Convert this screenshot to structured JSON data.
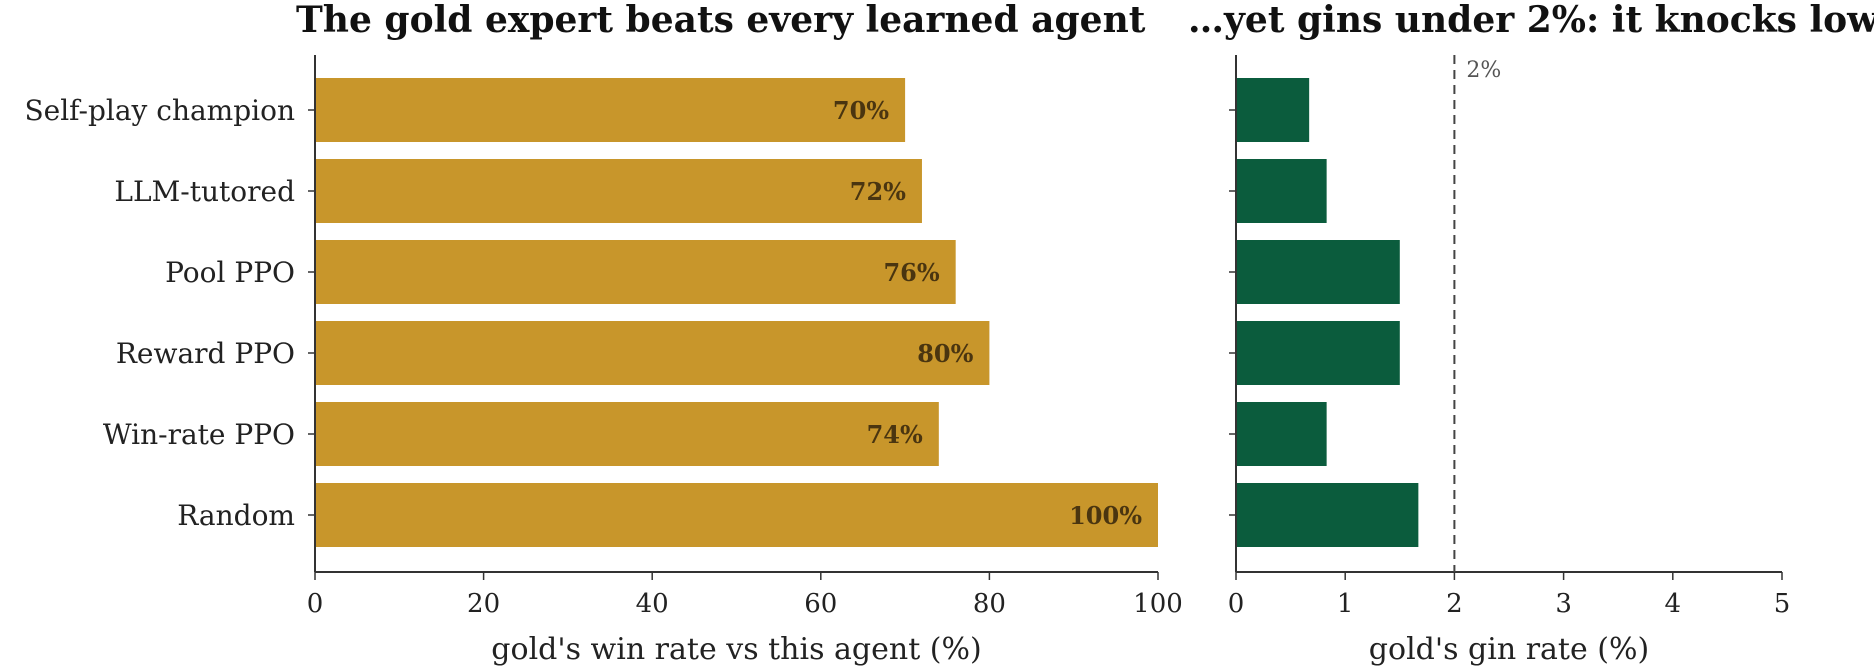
{
  "colors": {
    "win": "#C8962B",
    "gin": "#0B5C3D",
    "axis": "#333333",
    "ref_line": "#444444"
  },
  "chart_data": {
    "title_left": "The gold expert beats every learned agent",
    "title_right": "…yet gins under 2%: it knocks low",
    "panels": [
      {
        "type": "bar",
        "orientation": "horizontal",
        "categories": [
          "Self-play champion",
          "LLM-tutored",
          "Pool PPO",
          "Reward PPO",
          "Win-rate PPO",
          "Random"
        ],
        "values": [
          70,
          72,
          76,
          80,
          74,
          100
        ],
        "data_labels": [
          "70%",
          "72%",
          "76%",
          "80%",
          "74%",
          "100%"
        ],
        "xlabel": "gold's win rate vs this agent (%)",
        "xlim": [
          0,
          100
        ],
        "xticks": [
          0,
          20,
          40,
          60,
          80,
          100
        ],
        "color": "#C8962B"
      },
      {
        "type": "bar",
        "orientation": "horizontal",
        "categories": [
          "Self-play champion",
          "LLM-tutored",
          "Pool PPO",
          "Reward PPO",
          "Win-rate PPO",
          "Random"
        ],
        "values": [
          0.67,
          0.83,
          1.5,
          1.5,
          0.83,
          1.67
        ],
        "xlabel": "gold's gin rate (%)",
        "xlim": [
          0,
          5
        ],
        "xticks": [
          0,
          1,
          2,
          3,
          4,
          5
        ],
        "reference_line": {
          "x": 2,
          "label": "2%"
        },
        "color": "#0B5C3D"
      }
    ]
  }
}
